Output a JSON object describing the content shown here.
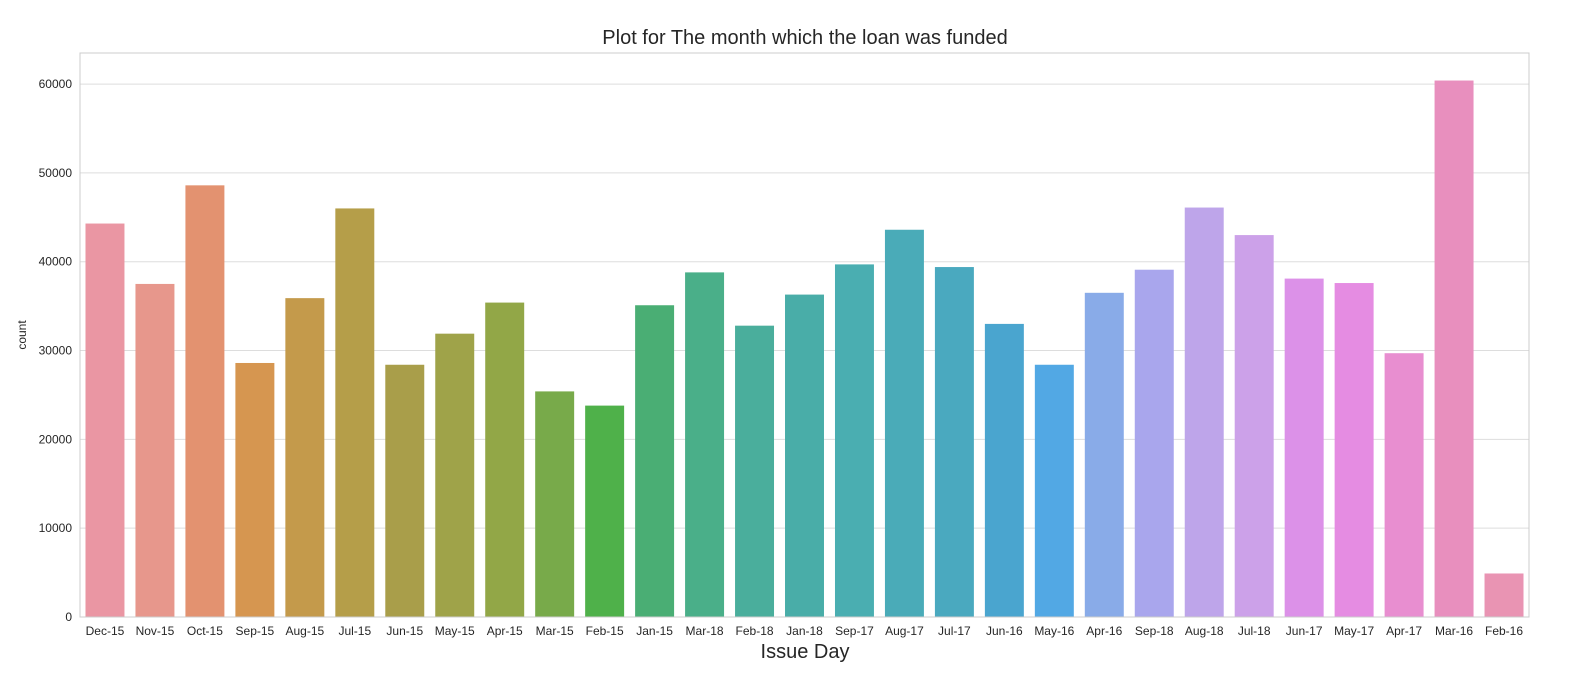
{
  "chart_data": {
    "type": "bar",
    "title": "Plot for The month which the loan was funded",
    "xlabel": "Issue Day",
    "ylabel": "count",
    "ylim": [
      0,
      63500
    ],
    "yticks": [
      0,
      10000,
      20000,
      30000,
      40000,
      50000,
      60000
    ],
    "grid": true,
    "categories": [
      "Dec-15",
      "Nov-15",
      "Oct-15",
      "Sep-15",
      "Aug-15",
      "Jul-15",
      "Jun-15",
      "May-15",
      "Apr-15",
      "Mar-15",
      "Feb-15",
      "Jan-15",
      "Mar-18",
      "Feb-18",
      "Jan-18",
      "Sep-17",
      "Aug-17",
      "Jul-17",
      "Jun-16",
      "May-16",
      "Apr-16",
      "Sep-18",
      "Aug-18",
      "Jul-18",
      "Jun-17",
      "May-17",
      "Apr-17",
      "Mar-16",
      "Feb-16"
    ],
    "values": [
      44300,
      37500,
      48600,
      28600,
      35900,
      46000,
      28400,
      31900,
      35400,
      25400,
      23800,
      35100,
      38800,
      32800,
      36300,
      39700,
      43600,
      39400,
      33000,
      28400,
      36500,
      39100,
      46100,
      43000,
      38100,
      37600,
      29700,
      60400,
      4900
    ],
    "colors": [
      "#ea96a3",
      "#e7978c",
      "#e39270",
      "#d69650",
      "#c49a4b",
      "#b59e49",
      "#a99e4a",
      "#9fa349",
      "#92a747",
      "#78aa4a",
      "#4fb14a",
      "#4aae74",
      "#4aaf89",
      "#4aae9c",
      "#49ada8",
      "#4aaeb1",
      "#4aabb8",
      "#4aa9bf",
      "#4aa5cf",
      "#52a8e4",
      "#89abe8",
      "#a9a6ed",
      "#bea5ea",
      "#cca1e9",
      "#dc91e8",
      "#e58ce2",
      "#e88ed0",
      "#e88fbe",
      "#e994b3"
    ]
  }
}
